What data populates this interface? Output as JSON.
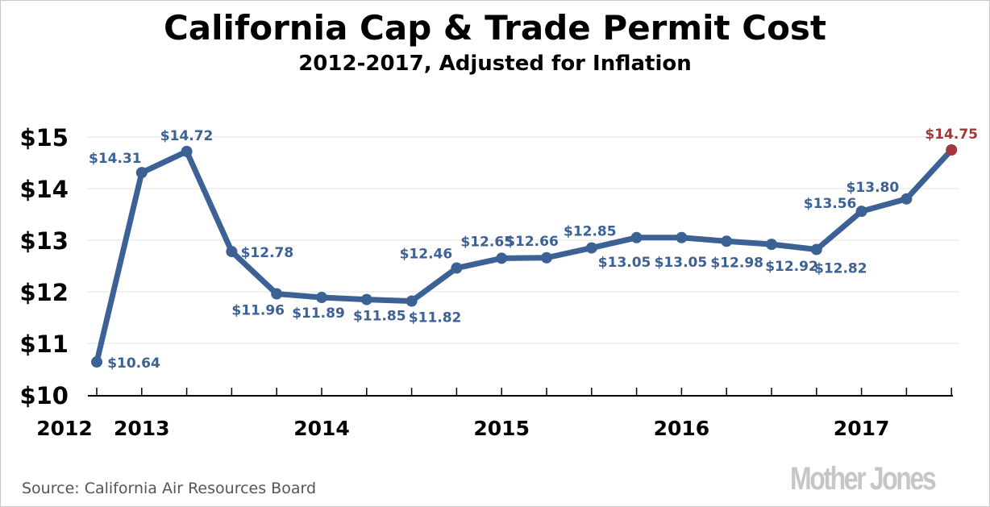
{
  "chart_data": {
    "type": "line",
    "title": "California Cap & Trade Permit Cost",
    "subtitle": "2012-2017, Adjusted for Inflation",
    "ylabel": "",
    "xlabel": "",
    "ylim": [
      10,
      15
    ],
    "yticks": [
      "$10",
      "$11",
      "$12",
      "$13",
      "$14",
      "$15"
    ],
    "year_labels": [
      "2012",
      "2013",
      "2014",
      "2015",
      "2016",
      "2017"
    ],
    "year_label_index": [
      null,
      1,
      5,
      9,
      13,
      17
    ],
    "values": [
      10.64,
      14.31,
      14.72,
      12.78,
      11.96,
      11.89,
      11.85,
      11.82,
      12.46,
      12.65,
      12.66,
      12.85,
      13.05,
      13.05,
      12.98,
      12.92,
      12.82,
      13.56,
      13.8,
      14.75
    ],
    "labels": [
      "$10.64",
      "$14.31",
      "$14.72",
      "$12.78",
      "$11.96",
      "$11.89",
      "$11.85",
      "$11.82",
      "$12.46",
      "$12.65",
      "$12.66",
      "$12.85",
      "$13.05",
      "$13.05",
      "$12.98",
      "$12.92",
      "$12.82",
      "$13.56",
      "$13.80",
      "$14.75"
    ],
    "grid": true,
    "colors": {
      "line": "#3b6195",
      "highlight": "#a3383a",
      "grid": "#e2e2e2"
    }
  },
  "source": "Source: California Air Resources Board",
  "logo": "Mother Jones"
}
